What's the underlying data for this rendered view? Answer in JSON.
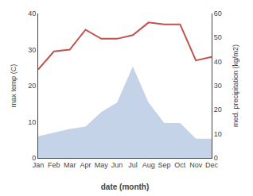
{
  "chart_data": {
    "type": "line",
    "categories": [
      "Jan",
      "Feb",
      "Mar",
      "Apr",
      "May",
      "Jun",
      "Jul",
      "Aug",
      "Sep",
      "Oct",
      "Nov",
      "Dec"
    ],
    "xlabel": "date (month)",
    "ylabel": "max temp (C)",
    "y2label": "med. precipitation (kg/m2)",
    "series": [
      {
        "type": "area",
        "color": "#c5d3e8",
        "axis": "y2",
        "values": [
          9.0,
          10.5,
          12.0,
          13.0,
          19.0,
          23.0,
          38.0,
          23.0,
          14.5,
          14.5,
          8.0,
          8.0
        ]
      },
      {
        "type": "line",
        "color": "#c0514d",
        "values": [
          24.5,
          29.5,
          30.0,
          35.5,
          33.0,
          33.0,
          34.0,
          37.5,
          37.0,
          37.0,
          27.0,
          28.0
        ]
      }
    ],
    "ylim": [
      0,
      40
    ],
    "yticks": [
      0,
      10,
      20,
      30,
      40
    ],
    "y2lim": [
      0,
      60
    ],
    "y2ticks": [
      0,
      10,
      20,
      30,
      40,
      50,
      60
    ],
    "grid": false
  }
}
